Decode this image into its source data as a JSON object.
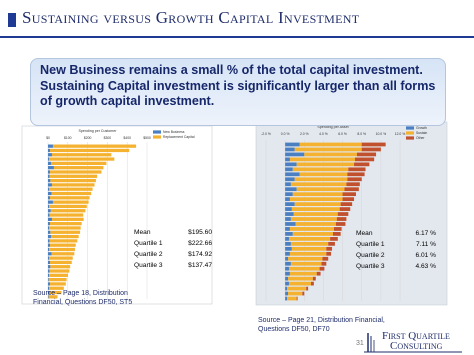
{
  "title": "Sustaining versus Growth Capital Investment",
  "callout": "New Business remains a small % of the total capital investment. Sustaining Capital investment is significantly larger than all forms of growth capital investment.",
  "charts": [
    {
      "type": "bar",
      "orientation": "horizontal",
      "stacked": true,
      "title": "Spending per Customer",
      "xlim": [
        0,
        500
      ],
      "xticks": [
        {
          "value": 0,
          "label": "$0"
        },
        {
          "value": 100,
          "label": "$100"
        },
        {
          "value": 200,
          "label": "$200"
        },
        {
          "value": 300,
          "label": "$300"
        },
        {
          "value": 400,
          "label": "$400"
        },
        {
          "value": 500,
          "label": "$500"
        }
      ],
      "categories": [
        null,
        null,
        null,
        null,
        null,
        null,
        null,
        null,
        null,
        null,
        null,
        null,
        null,
        null,
        null,
        null,
        null,
        null,
        null,
        null,
        null,
        null,
        null,
        null,
        null,
        null,
        null,
        null,
        null,
        null,
        null,
        null,
        null,
        null,
        null,
        null
      ],
      "series": [
        {
          "name": "New Business",
          "color": "#4a7fc1",
          "values": [
            25,
            10,
            20,
            5,
            15,
            30,
            10,
            8,
            12,
            20,
            5,
            18,
            10,
            25,
            6,
            14,
            8,
            20,
            10,
            5,
            12,
            15,
            8,
            10,
            6,
            18,
            5,
            10,
            12,
            8,
            6,
            4,
            10,
            5,
            8,
            3
          ]
        },
        {
          "name": "Replacement Capital",
          "color": "#f4b230",
          "values": [
            420,
            400,
            300,
            330,
            280,
            250,
            260,
            240,
            230,
            215,
            220,
            200,
            200,
            180,
            190,
            175,
            170,
            160,
            160,
            160,
            150,
            140,
            140,
            130,
            130,
            115,
            120,
            110,
            100,
            100,
            95,
            90,
            80,
            75,
            60,
            45
          ]
        }
      ],
      "stats": [
        [
          "Mean",
          "$195.60"
        ],
        [
          "Quartile 1",
          "$222.66"
        ],
        [
          "Quartile 2",
          "$174.92"
        ],
        [
          "Quartile 3",
          "$137.47"
        ]
      ],
      "source": "Source  – Page 18, Distribution Financial,  Questions DF50, ST5"
    },
    {
      "type": "bar",
      "orientation": "horizontal",
      "stacked": true,
      "title": "Spending per Asset",
      "xlim": [
        -2,
        12
      ],
      "xticks": [
        {
          "value": -2,
          "label": "-2.0 %"
        },
        {
          "value": 0,
          "label": "0.0 %"
        },
        {
          "value": 2,
          "label": "2.0 %"
        },
        {
          "value": 4,
          "label": "4.0 %"
        },
        {
          "value": 6,
          "label": "6.0 %"
        },
        {
          "value": 8,
          "label": "8.0 %"
        },
        {
          "value": 10,
          "label": "10.0 %"
        },
        {
          "value": 12,
          "label": "12.0 %"
        }
      ],
      "categories": [
        null,
        null,
        null,
        null,
        null,
        null,
        null,
        null,
        null,
        null,
        null,
        null,
        null,
        null,
        null,
        null,
        null,
        null,
        null,
        null,
        null,
        null,
        null,
        null,
        null,
        null,
        null,
        null,
        null,
        null,
        null,
        null
      ],
      "series": [
        {
          "name": "Growth",
          "color": "#4a7fc1",
          "values": [
            1.5,
            1.0,
            2.0,
            0.5,
            1.2,
            0.8,
            1.5,
            1.0,
            0.6,
            1.2,
            0.8,
            0.5,
            1.0,
            0.7,
            0.9,
            0.6,
            1.1,
            0.5,
            0.8,
            0.4,
            0.6,
            0.7,
            0.5,
            0.3,
            0.6,
            0.4,
            0.5,
            0.3,
            0.4,
            0.2,
            0.3,
            0.2
          ]
        },
        {
          "name": "Sustain",
          "color": "#f4b230",
          "values": [
            6.5,
            7.0,
            5.5,
            6.8,
            6.0,
            5.8,
            5.0,
            5.5,
            5.8,
            5.0,
            5.2,
            5.5,
            4.8,
            5.0,
            4.6,
            4.8,
            4.2,
            4.6,
            4.2,
            4.3,
            3.9,
            3.6,
            3.8,
            3.6,
            3.2,
            3.2,
            2.8,
            2.6,
            2.3,
            2.0,
            1.5,
            1.0
          ]
        },
        {
          "name": "Other",
          "color": "#c1502e",
          "values": [
            2.5,
            2.0,
            2.0,
            2.0,
            1.6,
            1.8,
            1.8,
            1.5,
            1.4,
            1.5,
            1.4,
            1.2,
            1.2,
            1.1,
            1.1,
            1.0,
            1.0,
            0.8,
            0.8,
            0.8,
            0.7,
            0.6,
            0.5,
            0.6,
            0.5,
            0.5,
            0.4,
            0.3,
            0.3,
            0.2,
            0.2,
            0.1
          ]
        }
      ],
      "stats": [
        [
          "Mean",
          "6.17 %"
        ],
        [
          "Quartile 1",
          "7.11 %"
        ],
        [
          "Quartile 2",
          "6.01 %"
        ],
        [
          "Quartile 3",
          "4.63 %"
        ]
      ],
      "source": "Source  – Page 21, Distribution Financial,  Questions DF50, DF70"
    }
  ],
  "page_number": "31",
  "logo": [
    "First Quartile",
    "Consulting"
  ]
}
